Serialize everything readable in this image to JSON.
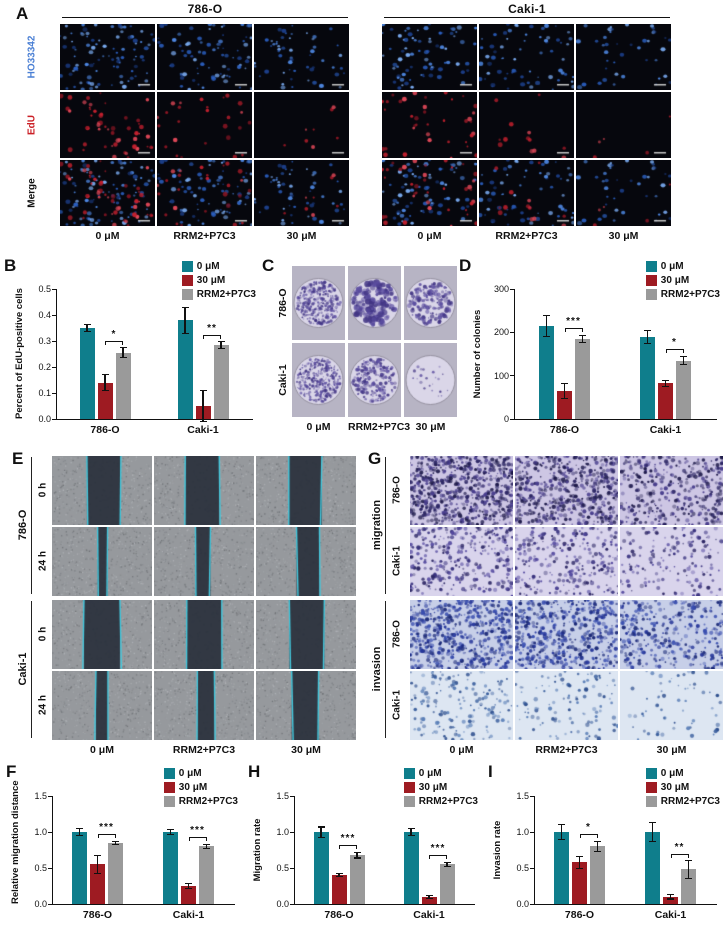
{
  "panelA": {
    "letter": "A",
    "groups": [
      "786-O",
      "Caki-1"
    ],
    "rows": [
      {
        "label": "HO33342",
        "color": "#4a7fd4"
      },
      {
        "label": "EdU",
        "color": "#cb2027"
      },
      {
        "label": "Merge",
        "color": "#111111"
      }
    ],
    "doses": [
      "0 μM",
      "RRM2+P7C3",
      "30 μM"
    ],
    "image_sim": {
      "blue_counts": [
        [
          95,
          82,
          55
        ],
        [
          78,
          68,
          42
        ]
      ],
      "red_counts": [
        [
          52,
          26,
          8
        ],
        [
          38,
          13,
          5
        ]
      ]
    }
  },
  "panelC": {
    "letter": "C",
    "rows": [
      "786-O",
      "Caki-1"
    ],
    "doses": [
      "0 μM",
      "RRM2+P7C3",
      "30 μM"
    ],
    "image_sim": {
      "counts": [
        [
          300,
          180,
          170
        ],
        [
          340,
          200,
          22
        ]
      ],
      "sizes": [
        [
          1.3,
          2.4,
          1.7
        ],
        [
          1.1,
          1.5,
          1.2
        ]
      ]
    }
  },
  "panelE": {
    "letter": "E",
    "groups": [
      "786-O",
      "Caki-1"
    ],
    "times": [
      "0 h",
      "24 h"
    ],
    "doses": [
      "0 μM",
      "RRM2+P7C3",
      "30 μM"
    ],
    "image_sim": {
      "gap_fracs": [
        [
          0.34,
          0.34,
          0.33
        ],
        [
          0.1,
          0.15,
          0.23
        ],
        [
          0.36,
          0.35,
          0.35
        ],
        [
          0.12,
          0.17,
          0.27
        ]
      ]
    }
  },
  "panelG": {
    "letter": "G",
    "assays": [
      "migration",
      "invasion"
    ],
    "cell_lines": [
      "786-O",
      "Caki-1"
    ],
    "doses": [
      "0 μM",
      "RRM2+P7C3",
      "30 μM"
    ],
    "image_sim": {
      "counts": [
        [
          700,
          560,
          380
        ],
        [
          320,
          260,
          160
        ],
        [
          600,
          520,
          340
        ],
        [
          170,
          110,
          60
        ]
      ],
      "bgs": [
        "#cdc6e4",
        "#d9d4ec",
        "#c7cfe8",
        "#dde6f2"
      ],
      "dot_colors": [
        [
          "#2e2866",
          "#4a3f8e",
          "#1e1a4a"
        ],
        [
          "#3a3380",
          "#554aa0",
          "#2e2866"
        ],
        [
          "#27379a",
          "#3a4fb0",
          "#1c2a78"
        ],
        [
          "#3a5f9e",
          "#5b80b8",
          "#2e4f8e"
        ]
      ]
    }
  },
  "chart_data": [
    {
      "letter": "B",
      "type": "bar",
      "ylabel": "Percent of EdU-positive cells",
      "categories": [
        "786-O",
        "Caki-1"
      ],
      "ylim": [
        0,
        0.5
      ],
      "yticks": [
        "0.0",
        "0.1",
        "0.2",
        "0.3",
        "0.4",
        "0.5"
      ],
      "legend_position": "top-right",
      "grid": false,
      "series": [
        {
          "name": "0 μM",
          "color": "#0f7e8c",
          "values": [
            0.35,
            0.38
          ],
          "errors": [
            0.015,
            0.05
          ]
        },
        {
          "name": "30 μM",
          "color": "#9e1b22",
          "values": [
            0.14,
            0.05
          ],
          "errors": [
            0.03,
            0.06
          ]
        },
        {
          "name": "RRM2+P7C3",
          "color": "#9a9a9a",
          "values": [
            0.255,
            0.285
          ],
          "errors": [
            0.02,
            0.012
          ]
        }
      ],
      "significance": [
        {
          "category": 0,
          "between": [
            1,
            2
          ],
          "label": "*"
        },
        {
          "category": 1,
          "between": [
            1,
            2
          ],
          "label": "**"
        }
      ]
    },
    {
      "letter": "D",
      "type": "bar",
      "ylabel": "Number of colonies",
      "categories": [
        "786-O",
        "Caki-1"
      ],
      "ylim": [
        0,
        300
      ],
      "yticks": [
        "0",
        "100",
        "200",
        "300"
      ],
      "legend_position": "top-right",
      "grid": false,
      "series": [
        {
          "name": "0 μM",
          "color": "#0f7e8c",
          "values": [
            215,
            190
          ],
          "errors": [
            25,
            15
          ]
        },
        {
          "name": "30 μM",
          "color": "#9e1b22",
          "values": [
            65,
            82
          ],
          "errors": [
            18,
            6
          ]
        },
        {
          "name": "RRM2+P7C3",
          "color": "#9a9a9a",
          "values": [
            185,
            135
          ],
          "errors": [
            8,
            10
          ]
        }
      ],
      "significance": [
        {
          "category": 0,
          "between": [
            1,
            2
          ],
          "label": "***"
        },
        {
          "category": 1,
          "between": [
            1,
            2
          ],
          "label": "*"
        }
      ]
    },
    {
      "letter": "F",
      "type": "bar",
      "ylabel": "Relative migration distance",
      "categories": [
        "786-O",
        "Caki-1"
      ],
      "ylim": [
        0,
        1.5
      ],
      "yticks": [
        "0.0",
        "0.5",
        "1.0",
        "1.5"
      ],
      "legend_position": "top-right",
      "grid": false,
      "series": [
        {
          "name": "0 μM",
          "color": "#0f7e8c",
          "values": [
            1.0,
            1.0
          ],
          "errors": [
            0.05,
            0.04
          ]
        },
        {
          "name": "30 μM",
          "color": "#9e1b22",
          "values": [
            0.55,
            0.25
          ],
          "errors": [
            0.12,
            0.03
          ]
        },
        {
          "name": "RRM2+P7C3",
          "color": "#9a9a9a",
          "values": [
            0.85,
            0.8
          ],
          "errors": [
            0.02,
            0.03
          ]
        }
      ],
      "significance": [
        {
          "category": 0,
          "between": [
            1,
            2
          ],
          "label": "***"
        },
        {
          "category": 1,
          "between": [
            1,
            2
          ],
          "label": "***"
        }
      ]
    },
    {
      "letter": "H",
      "type": "bar",
      "ylabel": "Migration rate",
      "categories": [
        "786-O",
        "Caki-1"
      ],
      "ylim": [
        0,
        1.5
      ],
      "yticks": [
        "0.0",
        "0.5",
        "1.0",
        "1.5"
      ],
      "legend_position": "top-right",
      "grid": false,
      "series": [
        {
          "name": "0 μM",
          "color": "#0f7e8c",
          "values": [
            1.0,
            1.0
          ],
          "errors": [
            0.07,
            0.05
          ]
        },
        {
          "name": "30 μM",
          "color": "#9e1b22",
          "values": [
            0.4,
            0.1
          ],
          "errors": [
            0.02,
            0.02
          ]
        },
        {
          "name": "RRM2+P7C3",
          "color": "#9a9a9a",
          "values": [
            0.68,
            0.55
          ],
          "errors": [
            0.04,
            0.03
          ]
        }
      ],
      "significance": [
        {
          "category": 0,
          "between": [
            1,
            2
          ],
          "label": "***"
        },
        {
          "category": 1,
          "between": [
            1,
            2
          ],
          "label": "***"
        }
      ]
    },
    {
      "letter": "I",
      "type": "bar",
      "ylabel": "Invasion rate",
      "categories": [
        "786-O",
        "Caki-1"
      ],
      "ylim": [
        0,
        1.5
      ],
      "yticks": [
        "0.0",
        "0.5",
        "1.0",
        "1.5"
      ],
      "legend_position": "top-right",
      "grid": false,
      "series": [
        {
          "name": "0 μM",
          "color": "#0f7e8c",
          "values": [
            1.0,
            1.0
          ],
          "errors": [
            0.1,
            0.13
          ]
        },
        {
          "name": "30 μM",
          "color": "#9e1b22",
          "values": [
            0.58,
            0.1
          ],
          "errors": [
            0.08,
            0.03
          ]
        },
        {
          "name": "RRM2+P7C3",
          "color": "#9a9a9a",
          "values": [
            0.8,
            0.48
          ],
          "errors": [
            0.07,
            0.12
          ]
        }
      ],
      "significance": [
        {
          "category": 0,
          "between": [
            1,
            2
          ],
          "label": "*"
        },
        {
          "category": 1,
          "between": [
            1,
            2
          ],
          "label": "**"
        }
      ]
    }
  ]
}
